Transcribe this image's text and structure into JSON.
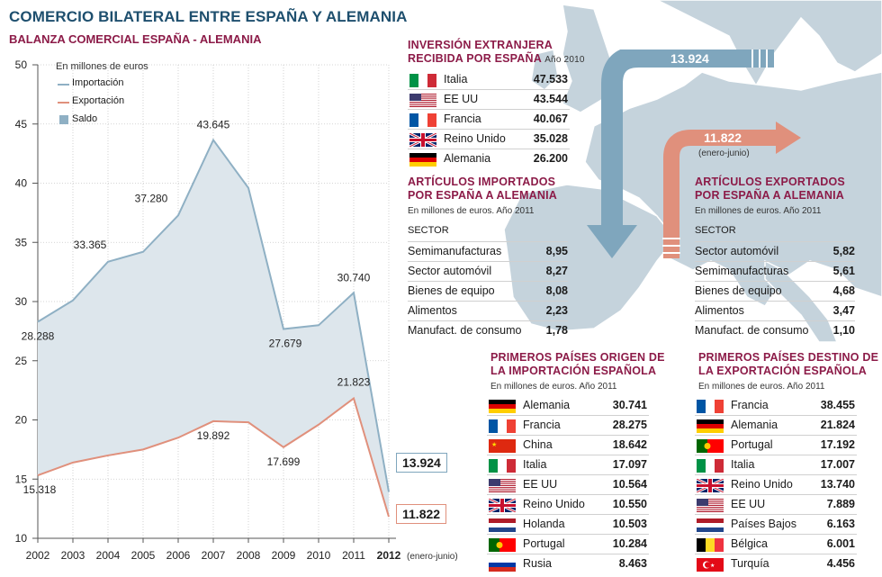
{
  "title": "COMERCIO BILATERAL ENTRE ESPAÑA Y ALEMANIA",
  "subtitle": "BALANZA COMERCIAL ESPAÑA - ALEMANIA",
  "chart_data": {
    "type": "area",
    "unit_label": "En millones de euros",
    "legend": {
      "placement": "top-left",
      "import": "Importación",
      "export": "Exportación",
      "saldo": "Saldo"
    },
    "x": [
      "2002",
      "2003",
      "2004",
      "2005",
      "2006",
      "2007",
      "2008",
      "2009",
      "2010",
      "2011",
      "2012"
    ],
    "x_note": "(enero-junio)",
    "ylim": [
      10,
      50
    ],
    "yticks": [
      10,
      15,
      20,
      25,
      30,
      35,
      40,
      45,
      50
    ],
    "grid": true,
    "colors": {
      "import": "#8fb0c4",
      "export": "#e0907c",
      "saldo_fill": "#dde6ec"
    },
    "series": [
      {
        "name": "Importación",
        "values": [
          28.288,
          30.1,
          33.365,
          34.2,
          37.28,
          43.645,
          39.6,
          27.679,
          28.0,
          30.74,
          13.924
        ]
      },
      {
        "name": "Exportación",
        "values": [
          15.318,
          16.4,
          17.0,
          17.5,
          18.5,
          19.892,
          19.8,
          17.699,
          19.6,
          21.823,
          11.822
        ]
      }
    ],
    "data_labels": [
      {
        "series": "Importación",
        "index": 0,
        "text": "28.288"
      },
      {
        "series": "Importación",
        "index": 2,
        "text": "33.365"
      },
      {
        "series": "Importación",
        "index": 4,
        "text": "37.280"
      },
      {
        "series": "Importación",
        "index": 5,
        "text": "43.645"
      },
      {
        "series": "Importación",
        "index": 7,
        "text": "27.679"
      },
      {
        "series": "Importación",
        "index": 9,
        "text": "30.740"
      },
      {
        "series": "Exportación",
        "index": 0,
        "text": "15.318"
      },
      {
        "series": "Exportación",
        "index": 5,
        "text": "19.892"
      },
      {
        "series": "Exportación",
        "index": 7,
        "text": "17.699"
      },
      {
        "series": "Exportación",
        "index": 9,
        "text": "21.823"
      }
    ],
    "callouts": {
      "import_2012": "13.924",
      "export_2012": "11.822"
    }
  },
  "map": {
    "arrow_import_value": "13.924",
    "arrow_export_value": "11.822",
    "arrow_export_note": "(enero-junio)",
    "colors": {
      "land": "#c5d3dc",
      "sea": "#ffffff",
      "arrow_import": "#7fa6bd",
      "arrow_export": "#e0907c"
    }
  },
  "inversion": {
    "title_line1": "INVERSIÓN EXTRANJERA",
    "title_line2": "RECIBIDA POR ESPAÑA",
    "note": "Año 2010",
    "rows": [
      {
        "flag": "italy-flag",
        "name": "Italia",
        "value": "47.533"
      },
      {
        "flag": "usa-flag",
        "name": "EE UU",
        "value": "43.544"
      },
      {
        "flag": "france-flag",
        "name": "Francia",
        "value": "40.067"
      },
      {
        "flag": "uk-flag",
        "name": "Reino Unido",
        "value": "35.028"
      },
      {
        "flag": "germany-flag",
        "name": "Alemania",
        "value": "26.200"
      }
    ]
  },
  "importados": {
    "title_line1": "ARTÍCULOS IMPORTADOS",
    "title_line2": "POR ESPAÑA A ALEMANIA",
    "note": "En millones de euros. Año 2011",
    "header": "SECTOR",
    "rows": [
      {
        "name": "Semimanufacturas",
        "value": "8,95"
      },
      {
        "name": "Sector automóvil",
        "value": "8,27"
      },
      {
        "name": "Bienes de equipo",
        "value": "8,08"
      },
      {
        "name": "Alimentos",
        "value": "2,23"
      },
      {
        "name": "Manufact. de consumo",
        "value": "1,78"
      }
    ]
  },
  "exportados": {
    "title_line1": "ARTÍCULOS EXPORTADOS",
    "title_line2": "POR ESPAÑA A ALEMANIA",
    "note": "En millones de euros. Año 2011",
    "header": "SECTOR",
    "rows": [
      {
        "name": "Sector automóvil",
        "value": "5,82"
      },
      {
        "name": "Semimanufacturas",
        "value": "5,61"
      },
      {
        "name": "Bienes de equipo",
        "value": "4,68"
      },
      {
        "name": "Alimentos",
        "value": "3,47"
      },
      {
        "name": "Manufact. de consumo",
        "value": "1,10"
      }
    ]
  },
  "origen": {
    "title_line1": "PRIMEROS PAÍSES ORIGEN DE",
    "title_line2": "LA IMPORTACIÓN ESPAÑOLA",
    "note": "En millones de euros. Año 2011",
    "rows": [
      {
        "flag": "germany-flag",
        "name": "Alemania",
        "value": "30.741"
      },
      {
        "flag": "france-flag",
        "name": "Francia",
        "value": "28.275"
      },
      {
        "flag": "china-flag",
        "name": "China",
        "value": "18.642"
      },
      {
        "flag": "italy-flag",
        "name": "Italia",
        "value": "17.097"
      },
      {
        "flag": "usa-flag",
        "name": "EE UU",
        "value": "10.564"
      },
      {
        "flag": "uk-flag",
        "name": "Reino Unido",
        "value": "10.550"
      },
      {
        "flag": "netherlands-flag",
        "name": "Holanda",
        "value": "10.503"
      },
      {
        "flag": "portugal-flag",
        "name": "Portugal",
        "value": "10.284"
      },
      {
        "flag": "russia-flag",
        "name": "Rusia",
        "value": "8.463"
      }
    ]
  },
  "destino": {
    "title_line1": "PRIMEROS PAÍSES DESTINO DE",
    "title_line2": "LA EXPORTACIÓN ESPAÑOLA",
    "note": "En millones de euros. Año 2011",
    "rows": [
      {
        "flag": "france-flag",
        "name": "Francia",
        "value": "38.455"
      },
      {
        "flag": "germany-flag",
        "name": "Alemania",
        "value": "21.824"
      },
      {
        "flag": "portugal-flag",
        "name": "Portugal",
        "value": "17.192"
      },
      {
        "flag": "italy-flag",
        "name": "Italia",
        "value": "17.007"
      },
      {
        "flag": "uk-flag",
        "name": "Reino Unido",
        "value": "13.740"
      },
      {
        "flag": "usa-flag",
        "name": "EE UU",
        "value": "7.889"
      },
      {
        "flag": "netherlands-flag",
        "name": "Países Bajos",
        "value": "6.163"
      },
      {
        "flag": "belgium-flag",
        "name": "Bélgica",
        "value": "6.001"
      },
      {
        "flag": "turkey-flag",
        "name": "Turquía",
        "value": "4.456"
      }
    ]
  }
}
